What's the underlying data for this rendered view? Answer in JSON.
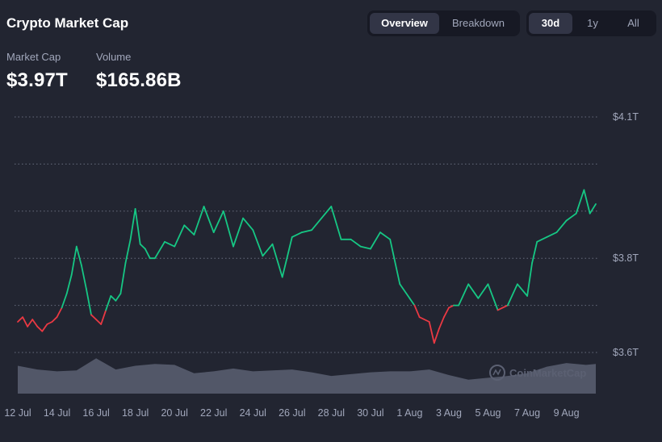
{
  "header": {
    "title": "Crypto Market Cap",
    "view_tabs": [
      "Overview",
      "Breakdown"
    ],
    "range_tabs": [
      "30d",
      "1y",
      "All"
    ],
    "active_view": "Overview",
    "active_range": "30d"
  },
  "stats": {
    "market_cap_label": "Market Cap",
    "market_cap_value": "$3.97T",
    "volume_label": "Volume",
    "volume_value": "$165.86B"
  },
  "watermark": "CoinMarketCap",
  "colors": {
    "background": "#222531",
    "up": "#16c784",
    "down": "#ea3943",
    "grid": "#a1a7bb",
    "volume": "#5b6072"
  },
  "chart_data": {
    "type": "line",
    "title": "",
    "xlabel": "",
    "ylabel": "",
    "x_unit": "day (July–August)",
    "x_ticks": [
      {
        "day": 12,
        "label": "12 Jul"
      },
      {
        "day": 14,
        "label": "14 Jul"
      },
      {
        "day": 16,
        "label": "16 Jul"
      },
      {
        "day": 18,
        "label": "18 Jul"
      },
      {
        "day": 20,
        "label": "20 Jul"
      },
      {
        "day": 22,
        "label": "22 Jul"
      },
      {
        "day": 24,
        "label": "24 Jul"
      },
      {
        "day": 26,
        "label": "26 Jul"
      },
      {
        "day": 28,
        "label": "28 Jul"
      },
      {
        "day": 30,
        "label": "30 Jul"
      },
      {
        "day": 32,
        "label": "1 Aug"
      },
      {
        "day": 34,
        "label": "3 Aug"
      },
      {
        "day": 36,
        "label": "5 Aug"
      },
      {
        "day": 38,
        "label": "7 Aug"
      },
      {
        "day": 40,
        "label": "9 Aug"
      }
    ],
    "y_ticks": [
      {
        "value": 4.1,
        "label": "$4.1T"
      },
      {
        "value": 3.8,
        "label": "$3.8T"
      },
      {
        "value": 3.6,
        "label": "$3.6T"
      }
    ],
    "ylim": [
      3.6,
      4.1
    ],
    "grid": true,
    "baseline": 3.7,
    "series": [
      {
        "x": [
          12.0,
          12.25,
          12.5,
          12.75,
          13.0,
          13.25,
          13.5,
          13.75,
          14.0,
          14.25,
          14.5,
          14.75,
          15.0,
          15.25,
          15.5,
          15.75,
          16.0,
          16.25,
          16.5,
          16.75,
          17.0,
          17.25,
          17.5,
          17.75,
          18.0,
          18.25,
          18.5,
          18.75,
          19.0,
          19.5,
          20.0,
          20.5,
          21.0,
          21.5,
          22.0,
          22.5,
          23.0,
          23.5,
          24.0,
          24.5,
          25.0,
          25.5,
          26.0,
          26.5,
          27.0,
          27.5,
          28.0,
          28.5,
          29.0,
          29.5,
          30.0,
          30.5,
          31.0,
          31.5,
          32.0,
          32.25,
          32.5,
          33.0,
          33.25,
          33.5,
          33.75,
          34.0,
          34.25,
          34.5,
          35.0,
          35.5,
          36.0,
          36.5,
          37.0,
          37.5,
          38.0,
          38.25,
          38.5,
          39.0,
          39.5,
          40.0,
          40.5,
          40.9,
          41.2,
          41.5
        ],
        "values": [
          3.665,
          3.675,
          3.655,
          3.67,
          3.655,
          3.645,
          3.66,
          3.665,
          3.675,
          3.695,
          3.725,
          3.765,
          3.825,
          3.785,
          3.735,
          3.68,
          3.67,
          3.66,
          3.69,
          3.72,
          3.71,
          3.725,
          3.79,
          3.84,
          3.905,
          3.83,
          3.82,
          3.8,
          3.8,
          3.835,
          3.825,
          3.87,
          3.85,
          3.91,
          3.855,
          3.9,
          3.825,
          3.885,
          3.86,
          3.805,
          3.83,
          3.76,
          3.845,
          3.855,
          3.86,
          3.885,
          3.91,
          3.84,
          3.84,
          3.825,
          3.82,
          3.855,
          3.84,
          3.745,
          3.715,
          3.7,
          3.675,
          3.665,
          3.62,
          3.65,
          3.675,
          3.695,
          3.7,
          3.7,
          3.745,
          3.715,
          3.745,
          3.69,
          3.7,
          3.745,
          3.72,
          3.79,
          3.835,
          3.845,
          3.855,
          3.88,
          3.895,
          3.945,
          3.895,
          3.915
        ]
      }
    ],
    "volume_series": {
      "x": [
        12,
        13,
        14,
        15,
        16,
        17,
        18,
        19,
        20,
        21,
        22,
        23,
        24,
        25,
        26,
        27,
        28,
        29,
        30,
        31,
        32,
        33,
        34,
        35,
        36,
        37,
        38,
        39,
        40,
        41,
        41.5
      ],
      "values": [
        0.3,
        0.26,
        0.24,
        0.25,
        0.38,
        0.26,
        0.3,
        0.32,
        0.31,
        0.22,
        0.24,
        0.27,
        0.24,
        0.25,
        0.26,
        0.23,
        0.19,
        0.21,
        0.23,
        0.24,
        0.24,
        0.26,
        0.2,
        0.15,
        0.17,
        0.19,
        0.22,
        0.29,
        0.33,
        0.31,
        0.32
      ]
    }
  }
}
